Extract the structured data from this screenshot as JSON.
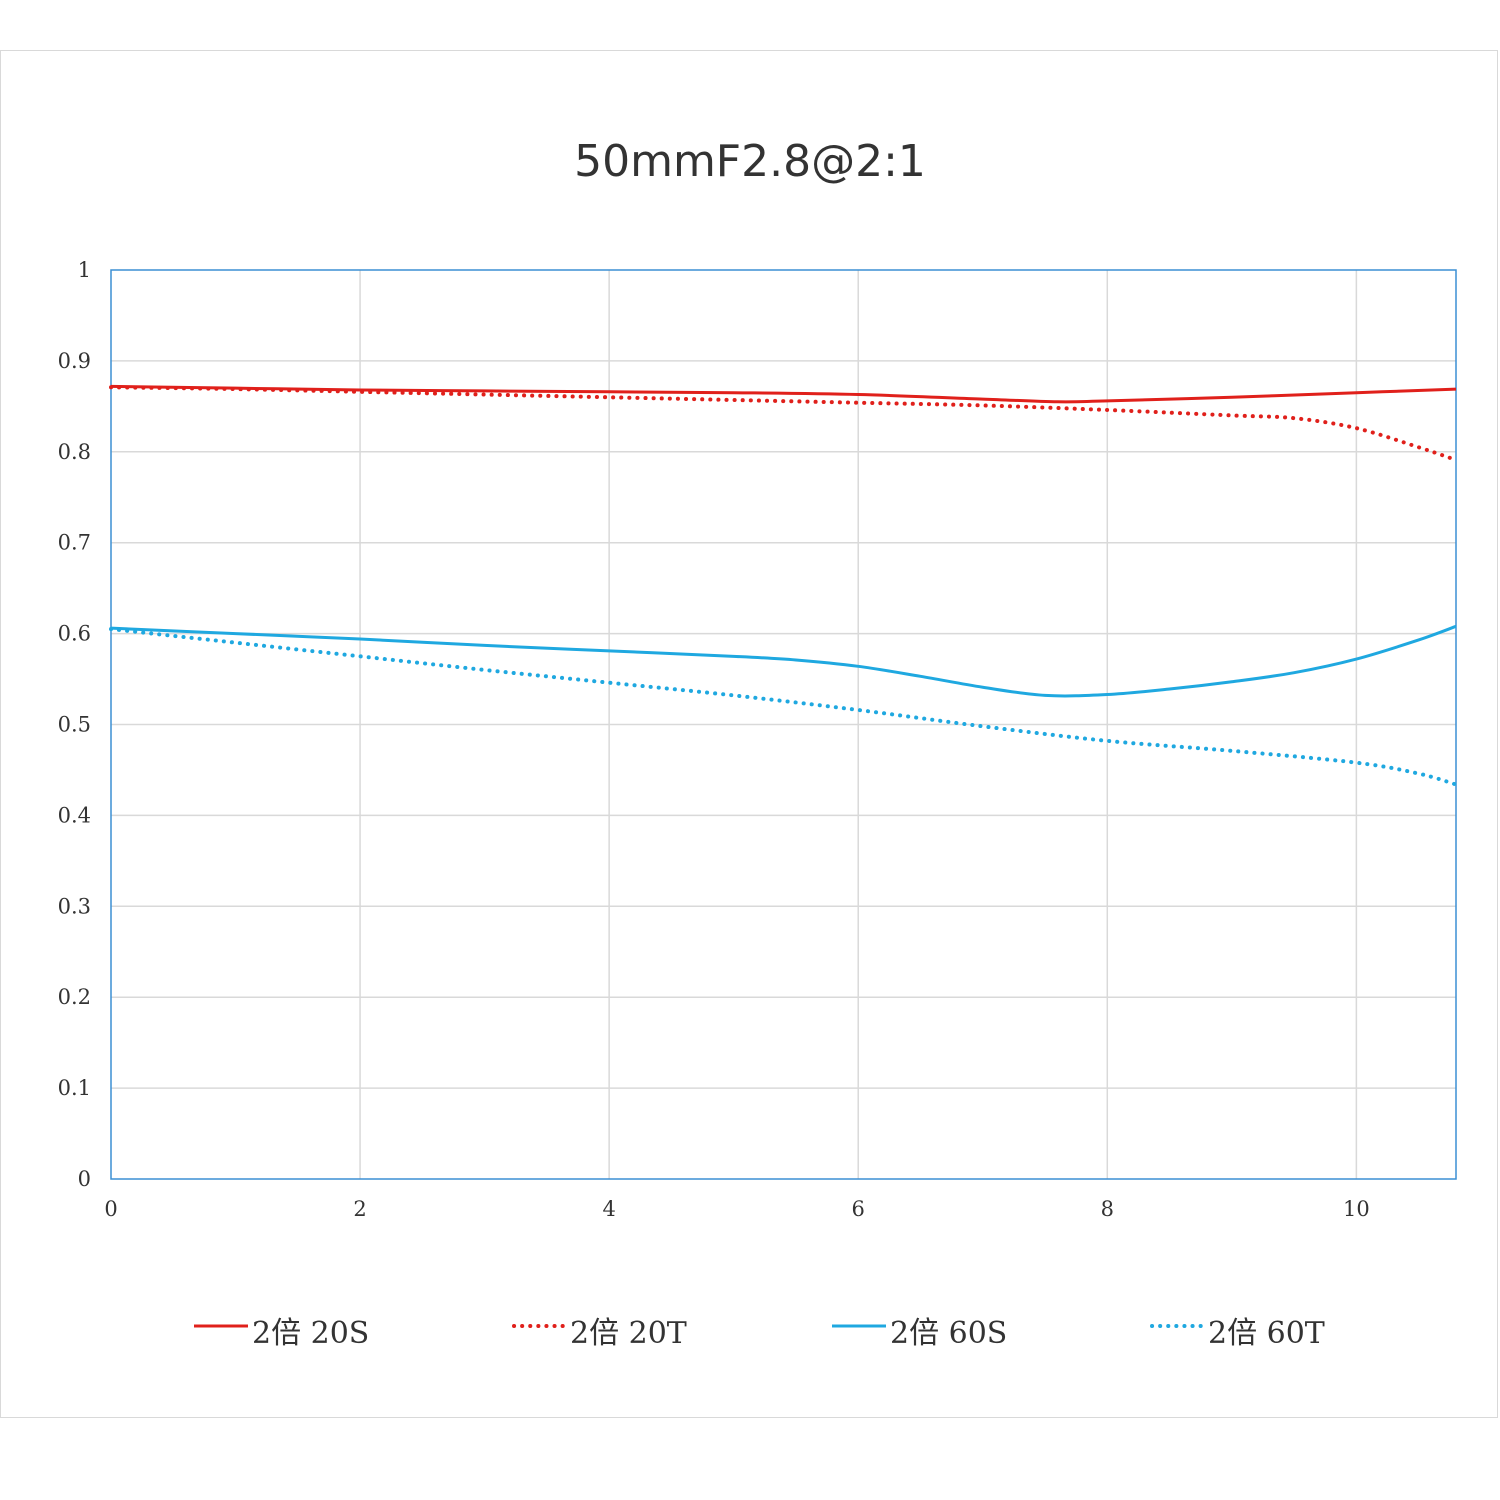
{
  "chart_data": {
    "type": "line",
    "title": "50mmF2.8@2:1",
    "xlabel": "",
    "ylabel": "",
    "xlim": [
      0,
      10.8
    ],
    "ylim": [
      0,
      1
    ],
    "xticks": [
      0,
      2,
      4,
      6,
      8,
      10
    ],
    "xtick_labels": [
      "0",
      "2",
      "4",
      "6",
      "8",
      "10"
    ],
    "yticks": [
      0,
      0.1,
      0.2,
      0.3,
      0.4,
      0.5,
      0.6,
      0.7,
      0.8,
      0.9,
      1
    ],
    "ytick_labels": [
      "0",
      "0.1",
      "0.2",
      "0.3",
      "0.4",
      "0.5",
      "0.6",
      "0.7",
      "0.8",
      "0.9",
      "1"
    ],
    "grid": true,
    "legend_position": "bottom",
    "series": [
      {
        "name": "2倍 20S",
        "color": "#e0201b",
        "style": "solid",
        "x": [
          0,
          1,
          2,
          3,
          4,
          5,
          6,
          7,
          7.6,
          8,
          9,
          10,
          10.8
        ],
        "y": [
          0.872,
          0.87,
          0.868,
          0.867,
          0.866,
          0.865,
          0.863,
          0.858,
          0.855,
          0.856,
          0.86,
          0.865,
          0.869
        ]
      },
      {
        "name": "2倍 20T",
        "color": "#e0201b",
        "style": "dotted",
        "x": [
          0,
          1,
          2,
          3,
          4,
          5,
          6,
          7,
          8,
          9,
          9.5,
          10,
          10.5,
          10.8
        ],
        "y": [
          0.871,
          0.869,
          0.866,
          0.863,
          0.86,
          0.857,
          0.854,
          0.851,
          0.846,
          0.84,
          0.837,
          0.826,
          0.805,
          0.791
        ]
      },
      {
        "name": "2倍 60S",
        "color": "#1fa8e0",
        "style": "solid",
        "x": [
          0,
          1,
          2,
          3,
          4,
          5,
          5.5,
          6,
          6.5,
          7,
          7.5,
          8,
          8.5,
          9,
          9.5,
          10,
          10.5,
          10.8
        ],
        "y": [
          0.606,
          0.6,
          0.594,
          0.587,
          0.581,
          0.575,
          0.571,
          0.564,
          0.553,
          0.541,
          0.532,
          0.533,
          0.539,
          0.547,
          0.557,
          0.572,
          0.593,
          0.608
        ]
      },
      {
        "name": "2倍 60T",
        "color": "#1fa8e0",
        "style": "dotted",
        "x": [
          0,
          1,
          2,
          3,
          4,
          5,
          6,
          7,
          8,
          9,
          10,
          10.5,
          10.8
        ],
        "y": [
          0.605,
          0.59,
          0.575,
          0.56,
          0.546,
          0.532,
          0.516,
          0.498,
          0.482,
          0.471,
          0.458,
          0.446,
          0.434
        ]
      }
    ]
  }
}
